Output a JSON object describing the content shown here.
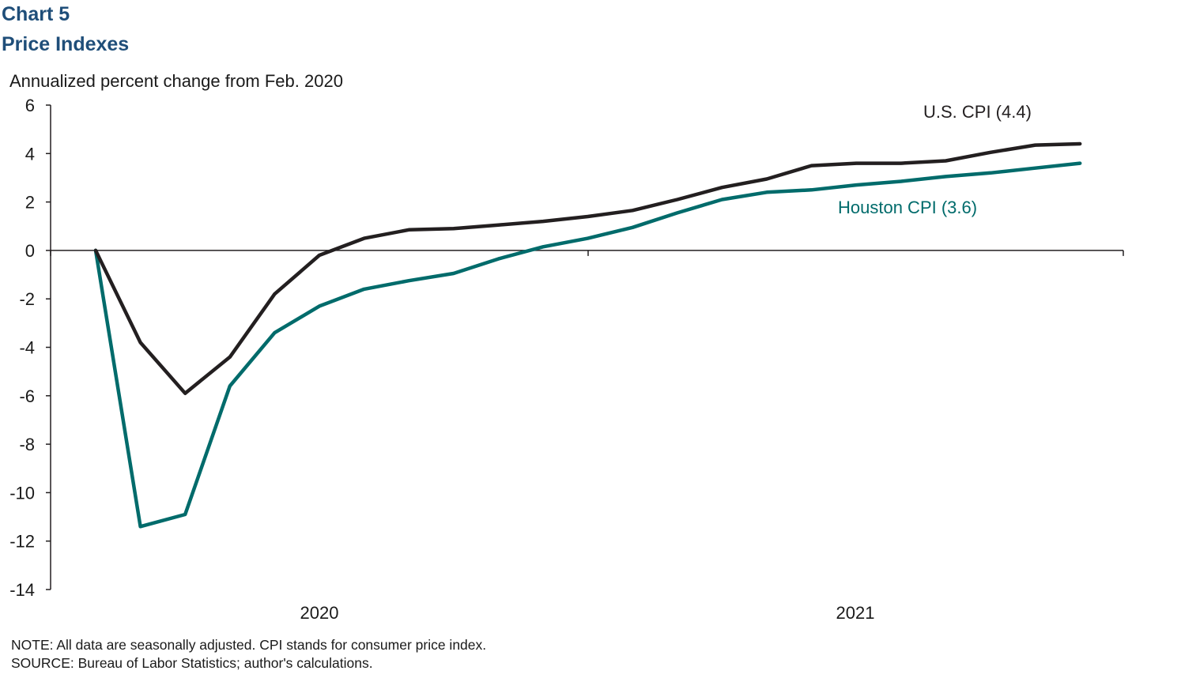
{
  "header": {
    "chart_number": "Chart 5",
    "title": "Price Indexes"
  },
  "footer": {
    "note": "NOTE: All data are seasonally adjusted. CPI stands for consumer  price index.",
    "source": "SOURCE:  Bureau  of Labor Statistics; author's calculations."
  },
  "colors": {
    "us_cpi": "#231f20",
    "houston_cpi": "#006b6b",
    "title": "#1f4e79"
  },
  "chart_data": {
    "type": "line",
    "title": "Price Indexes",
    "ylabel": "Annualized percent change from Feb. 2020",
    "xlabel": "",
    "ylim": [
      -14,
      6
    ],
    "yticks": [
      6,
      4,
      2,
      0,
      -2,
      -4,
      -6,
      -8,
      -10,
      -12,
      -14
    ],
    "x_tick_labels": [
      "2020",
      "2021"
    ],
    "grid": false,
    "x": [
      "Feb 2020",
      "Mar 2020",
      "Apr 2020",
      "May 2020",
      "Jun 2020",
      "Jul 2020",
      "Aug 2020",
      "Sep 2020",
      "Oct 2020",
      "Nov 2020",
      "Dec 2020",
      "Jan 2021",
      "Feb 2021",
      "Mar 2021",
      "Apr 2021",
      "May 2021",
      "Jun 2021",
      "Jul 2021",
      "Aug 2021",
      "Sep 2021",
      "Oct 2021",
      "Nov 2021",
      "Dec 2021"
    ],
    "series": [
      {
        "name": "U.S. CPI (4.4)",
        "color_key": "us_cpi",
        "values": [
          0,
          -3.8,
          -5.9,
          -4.4,
          -1.8,
          -0.2,
          0.5,
          0.85,
          0.9,
          1.05,
          1.2,
          1.4,
          1.65,
          2.1,
          2.6,
          2.95,
          3.5,
          3.6,
          3.6,
          3.7,
          4.05,
          4.35,
          4.4
        ]
      },
      {
        "name": "Houston CPI (3.6)",
        "color_key": "houston_cpi",
        "values": [
          0,
          -11.4,
          -10.9,
          -5.6,
          -3.4,
          -2.3,
          -1.6,
          -1.25,
          -0.95,
          -0.35,
          0.15,
          0.5,
          0.95,
          1.55,
          2.1,
          2.4,
          2.5,
          2.7,
          2.85,
          3.05,
          3.2,
          3.4,
          3.6
        ]
      }
    ]
  }
}
